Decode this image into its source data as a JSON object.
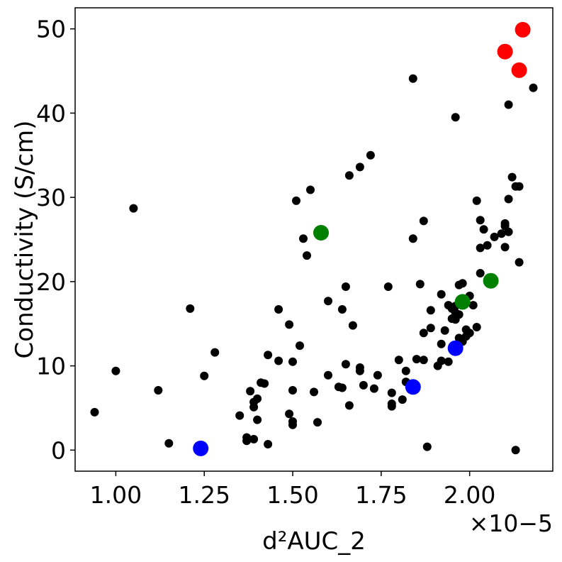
{
  "chart_data": {
    "type": "scatter",
    "title": "",
    "xlabel": "d²AUC_2",
    "ylabel": "Conductivity (S/cm)",
    "x_offset_label": "×10−5",
    "x_unit_scale": 1e-05,
    "xlim": [
      0.885,
      2.235
    ],
    "ylim": [
      -2.5,
      52.5
    ],
    "x_ticks": [
      1.0,
      1.25,
      1.5,
      1.75,
      2.0
    ],
    "x_tick_labels": [
      "1.00",
      "1.25",
      "1.50",
      "1.75",
      "2.00"
    ],
    "y_ticks": [
      0,
      10,
      20,
      30,
      40,
      50
    ],
    "y_tick_labels": [
      "0",
      "10",
      "20",
      "30",
      "40",
      "50"
    ],
    "grid": false,
    "legend": "none",
    "series": [
      {
        "color": "#000000",
        "marker": "small",
        "points": [
          [
            0.94,
            4.5
          ],
          [
            1.0,
            9.4
          ],
          [
            1.05,
            28.7
          ],
          [
            1.12,
            7.1
          ],
          [
            1.15,
            0.8
          ],
          [
            1.21,
            16.8
          ],
          [
            1.25,
            8.8
          ],
          [
            1.28,
            11.6
          ],
          [
            1.35,
            4.1
          ],
          [
            1.37,
            1.1
          ],
          [
            1.37,
            1.5
          ],
          [
            1.38,
            7.0
          ],
          [
            1.39,
            1.3
          ],
          [
            1.39,
            5.1
          ],
          [
            1.39,
            5.7
          ],
          [
            1.4,
            3.6
          ],
          [
            1.4,
            6.1
          ],
          [
            1.41,
            8.0
          ],
          [
            1.42,
            7.9
          ],
          [
            1.43,
            0.7
          ],
          [
            1.43,
            11.3
          ],
          [
            1.46,
            16.7
          ],
          [
            1.46,
            10.6
          ],
          [
            1.49,
            14.9
          ],
          [
            1.49,
            4.3
          ],
          [
            1.5,
            3.4
          ],
          [
            1.5,
            3.0
          ],
          [
            1.5,
            7.1
          ],
          [
            1.5,
            10.5
          ],
          [
            1.51,
            29.6
          ],
          [
            1.52,
            12.4
          ],
          [
            1.53,
            25.1
          ],
          [
            1.54,
            23.1
          ],
          [
            1.55,
            30.9
          ],
          [
            1.56,
            6.9
          ],
          [
            1.57,
            3.3
          ],
          [
            1.6,
            17.7
          ],
          [
            1.6,
            8.9
          ],
          [
            1.63,
            7.5
          ],
          [
            1.64,
            7.4
          ],
          [
            1.64,
            16.7
          ],
          [
            1.65,
            19.4
          ],
          [
            1.65,
            10.2
          ],
          [
            1.66,
            5.3
          ],
          [
            1.66,
            32.6
          ],
          [
            1.67,
            14.8
          ],
          [
            1.69,
            9.4
          ],
          [
            1.69,
            33.6
          ],
          [
            1.69,
            9.8
          ],
          [
            1.7,
            7.7
          ],
          [
            1.72,
            35.0
          ],
          [
            1.73,
            7.3
          ],
          [
            1.74,
            8.9
          ],
          [
            1.77,
            19.4
          ],
          [
            1.78,
            6.8
          ],
          [
            1.78,
            5.2
          ],
          [
            1.78,
            5.5
          ],
          [
            1.8,
            10.7
          ],
          [
            1.81,
            6.0
          ],
          [
            1.82,
            8.1
          ],
          [
            1.82,
            9.4
          ],
          [
            1.83,
            7.7
          ],
          [
            1.84,
            44.1
          ],
          [
            1.84,
            25.1
          ],
          [
            1.85,
            10.8
          ],
          [
            1.86,
            19.7
          ],
          [
            1.87,
            27.2
          ],
          [
            1.87,
            10.7
          ],
          [
            1.87,
            13.9
          ],
          [
            1.88,
            0.4
          ],
          [
            1.89,
            16.6
          ],
          [
            1.89,
            14.5
          ],
          [
            1.91,
            10.0
          ],
          [
            1.92,
            18.5
          ],
          [
            1.92,
            10.6
          ],
          [
            1.92,
            12.6
          ],
          [
            1.93,
            14.2
          ],
          [
            1.94,
            10.5
          ],
          [
            1.94,
            17.2
          ],
          [
            1.95,
            15.6
          ],
          [
            1.95,
            16.8
          ],
          [
            1.96,
            39.5
          ],
          [
            1.96,
            16.3
          ],
          [
            1.96,
            17.1
          ],
          [
            1.96,
            15.5
          ],
          [
            1.97,
            19.6
          ],
          [
            1.97,
            16.1
          ],
          [
            1.97,
            13.3
          ],
          [
            1.98,
            19.8
          ],
          [
            1.98,
            12.9
          ],
          [
            1.99,
            14.3
          ],
          [
            1.99,
            13.5
          ],
          [
            2.0,
            13.9
          ],
          [
            2.0,
            18.3
          ],
          [
            2.01,
            17.2
          ],
          [
            2.02,
            14.6
          ],
          [
            2.02,
            29.6
          ],
          [
            2.03,
            27.3
          ],
          [
            2.03,
            21.0
          ],
          [
            2.03,
            24.0
          ],
          [
            2.04,
            26.2
          ],
          [
            2.05,
            24.3
          ],
          [
            2.07,
            25.3
          ],
          [
            2.09,
            25.7
          ],
          [
            2.1,
            24.1
          ],
          [
            2.1,
            26.6
          ],
          [
            2.1,
            26.9
          ],
          [
            2.11,
            25.9
          ],
          [
            2.11,
            41.0
          ],
          [
            2.11,
            29.8
          ],
          [
            2.12,
            32.4
          ],
          [
            2.13,
            31.3
          ],
          [
            2.13,
            0.0
          ],
          [
            2.14,
            31.3
          ],
          [
            2.14,
            22.3
          ],
          [
            2.18,
            43.0
          ]
        ]
      },
      {
        "color": "#ff0000",
        "marker": "large",
        "points": [
          [
            2.1,
            47.3
          ],
          [
            2.14,
            45.1
          ],
          [
            2.15,
            49.9
          ]
        ]
      },
      {
        "color": "#008000",
        "marker": "large",
        "points": [
          [
            1.58,
            25.8
          ],
          [
            1.98,
            17.6
          ],
          [
            2.06,
            20.1
          ]
        ]
      },
      {
        "color": "#0000ff",
        "marker": "large",
        "points": [
          [
            1.24,
            0.2
          ],
          [
            1.84,
            7.5
          ],
          [
            1.96,
            12.1
          ]
        ]
      }
    ]
  }
}
